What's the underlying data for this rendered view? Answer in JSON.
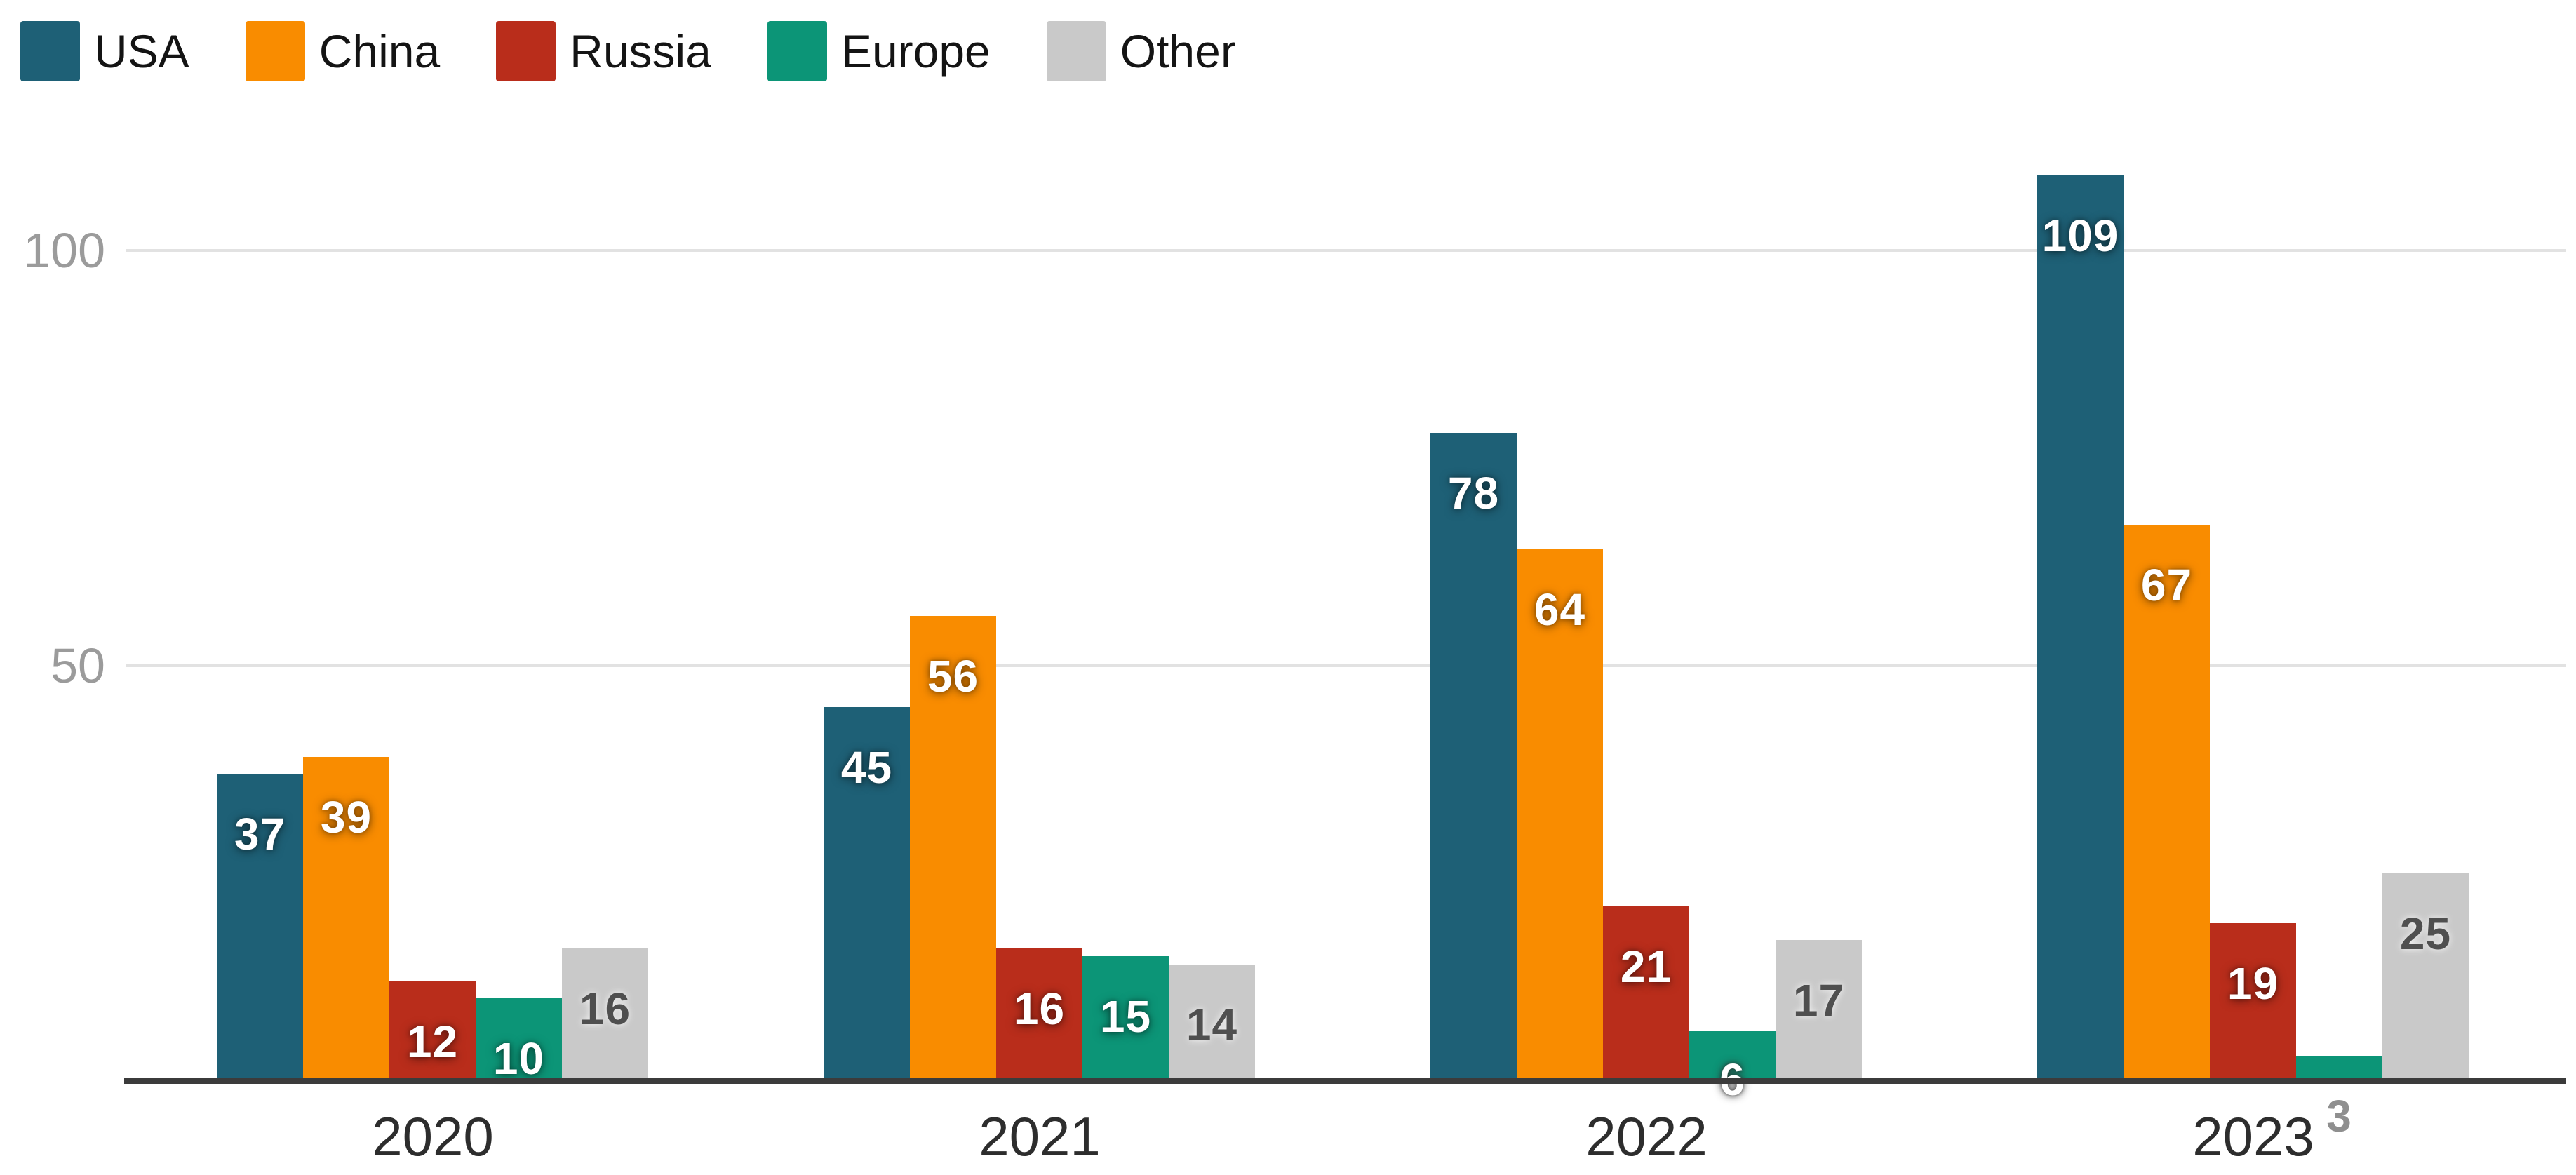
{
  "chart_data": {
    "type": "bar",
    "title": "",
    "categories": [
      "2020",
      "2021",
      "2022",
      "2023"
    ],
    "series": [
      {
        "name": "USA",
        "color": "#1e6076",
        "label_style": "light",
        "values": [
          37,
          45,
          78,
          109
        ]
      },
      {
        "name": "China",
        "color": "#f98c00",
        "label_style": "light",
        "values": [
          39,
          56,
          64,
          67
        ]
      },
      {
        "name": "Russia",
        "color": "#b92d1b",
        "label_style": "light",
        "values": [
          12,
          16,
          21,
          19
        ]
      },
      {
        "name": "Europe",
        "color": "#0c9577",
        "label_style": "light",
        "values": [
          10,
          15,
          6,
          3
        ]
      },
      {
        "name": "Other",
        "color": "#c9c9c9",
        "label_style": "dark",
        "values": [
          16,
          14,
          17,
          25
        ]
      }
    ],
    "y_axis": {
      "ticks": [
        50,
        100
      ],
      "tick_labels": [
        "50",
        "100"
      ],
      "range": [
        0,
        110
      ]
    },
    "grid": "horizontal",
    "legend_position": "top-left",
    "value_labels_shown": true
  },
  "colors": {
    "background": "#ffffff",
    "gridline": "#e2e2e2",
    "axis_line": "#3b3b3b",
    "tick_text": "#9b9b9b",
    "category_text": "#2d2d2d",
    "legend_text": "#141414",
    "value_label_light": "#ffffff",
    "value_label_dark": "#4f4f4f"
  }
}
